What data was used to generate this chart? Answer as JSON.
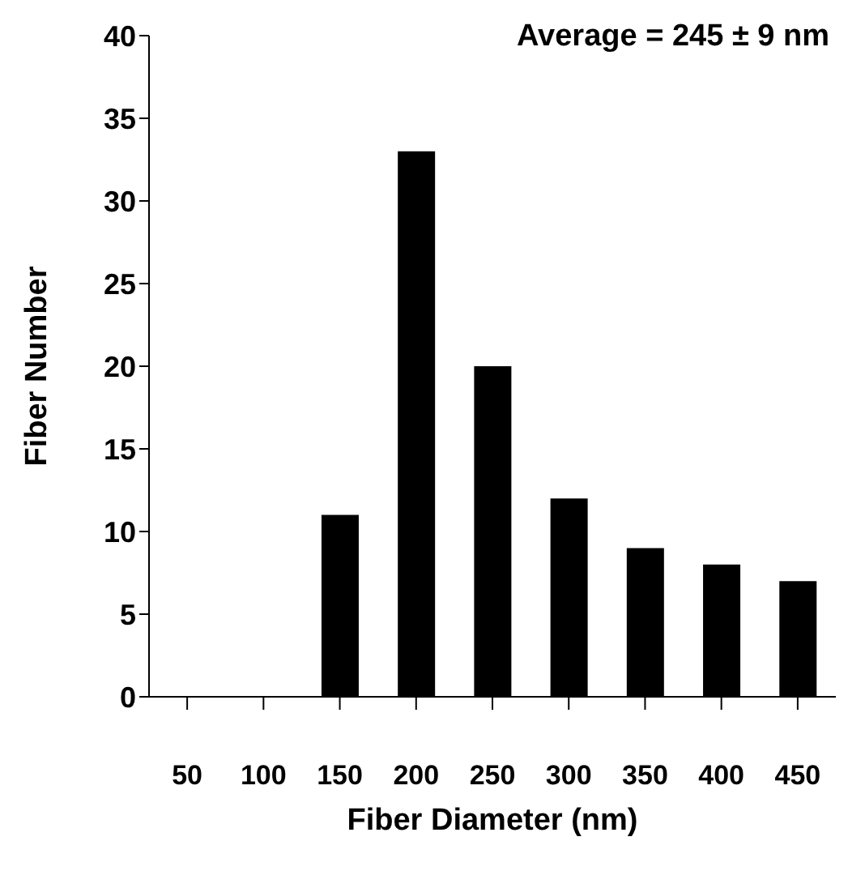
{
  "chart_data": {
    "type": "bar",
    "xlabel": "Fiber Diameter (nm)",
    "ylabel": "Fiber Number",
    "categories": [
      "50",
      "100",
      "150",
      "200",
      "250",
      "300",
      "350",
      "400",
      "450"
    ],
    "values": [
      0,
      0,
      11,
      33,
      20,
      12,
      9,
      8,
      7
    ],
    "color": "#000000",
    "ylim": [
      0,
      40
    ],
    "yticks": [
      0,
      5,
      10,
      15,
      20,
      25,
      30,
      35,
      40
    ],
    "grid": false,
    "annotations": [
      "Average = 245 ± 9 nm"
    ]
  }
}
